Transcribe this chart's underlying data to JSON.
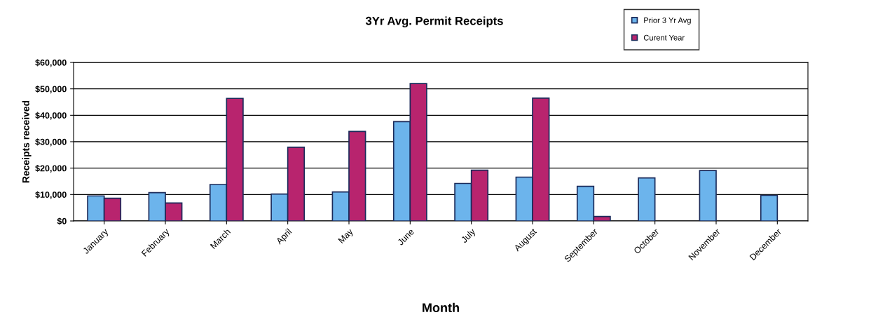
{
  "chart_data": {
    "type": "bar",
    "title": "3Yr Avg. Permit Receipts",
    "xlabel": "Month",
    "ylabel": "Receipts received",
    "categories": [
      "January",
      "February",
      "March",
      "April",
      "May",
      "June",
      "July",
      "August",
      "September",
      "October",
      "November",
      "December"
    ],
    "series": [
      {
        "name": "Prior 3 Yr Avg",
        "color": "#6cb4ec",
        "values": [
          9500,
          10700,
          13800,
          10200,
          11000,
          37600,
          14200,
          16600,
          13100,
          16300,
          19100,
          9700
        ]
      },
      {
        "name": "Curent Year",
        "color": "#b8246e",
        "values": [
          8600,
          6800,
          46400,
          27900,
          33900,
          52000,
          19200,
          46500,
          1700,
          null,
          null,
          null
        ]
      }
    ],
    "ylim": [
      0,
      60000
    ],
    "yticks": [
      {
        "value": 0,
        "label": "$0"
      },
      {
        "value": 10000,
        "label": "$10,000"
      },
      {
        "value": 20000,
        "label": "$20,000"
      },
      {
        "value": 30000,
        "label": "$30,000"
      },
      {
        "value": 40000,
        "label": "$40,000"
      },
      {
        "value": 50000,
        "label": "$50,000"
      },
      {
        "value": 60000,
        "label": "$60,000"
      }
    ],
    "grid": "y",
    "legend": "top right"
  }
}
